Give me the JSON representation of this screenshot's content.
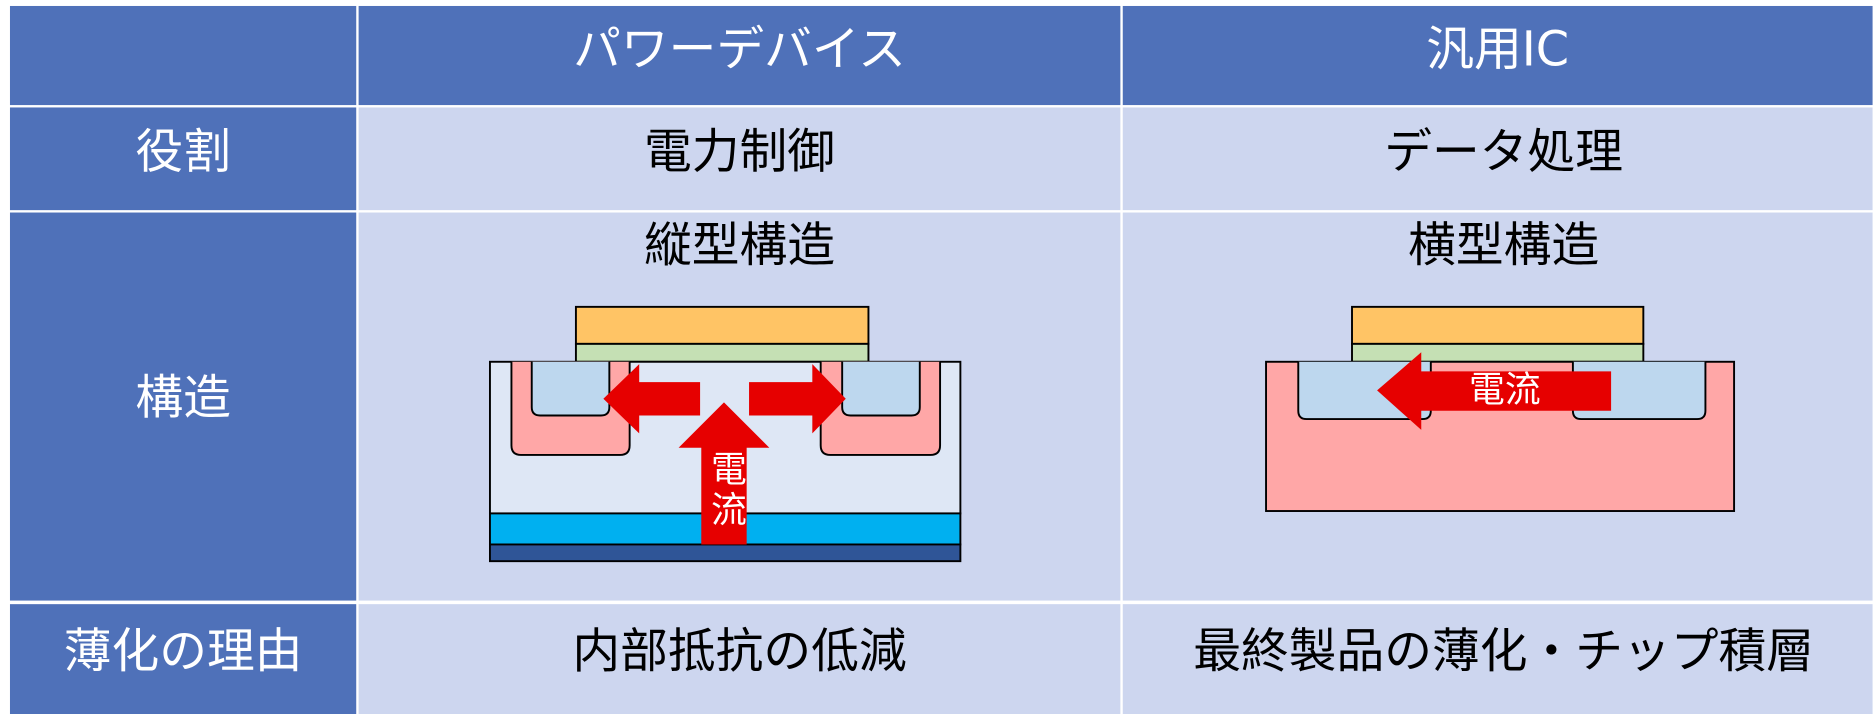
{
  "table": {
    "columns": [
      "パワーデバイス",
      "汎用IC"
    ],
    "rows": [
      {
        "label": "役割",
        "cells": [
          "電力制御",
          "データ処理"
        ]
      },
      {
        "label": "構造",
        "cells": [
          "縦型構造",
          "横型構造"
        ]
      },
      {
        "label": "薄化の理由",
        "cells": [
          "内部抵抗の低減",
          "最終製品の薄化・チップ積層"
        ]
      }
    ]
  },
  "diagrams": {
    "power_current": "電流",
    "ic_current": "電流"
  }
}
